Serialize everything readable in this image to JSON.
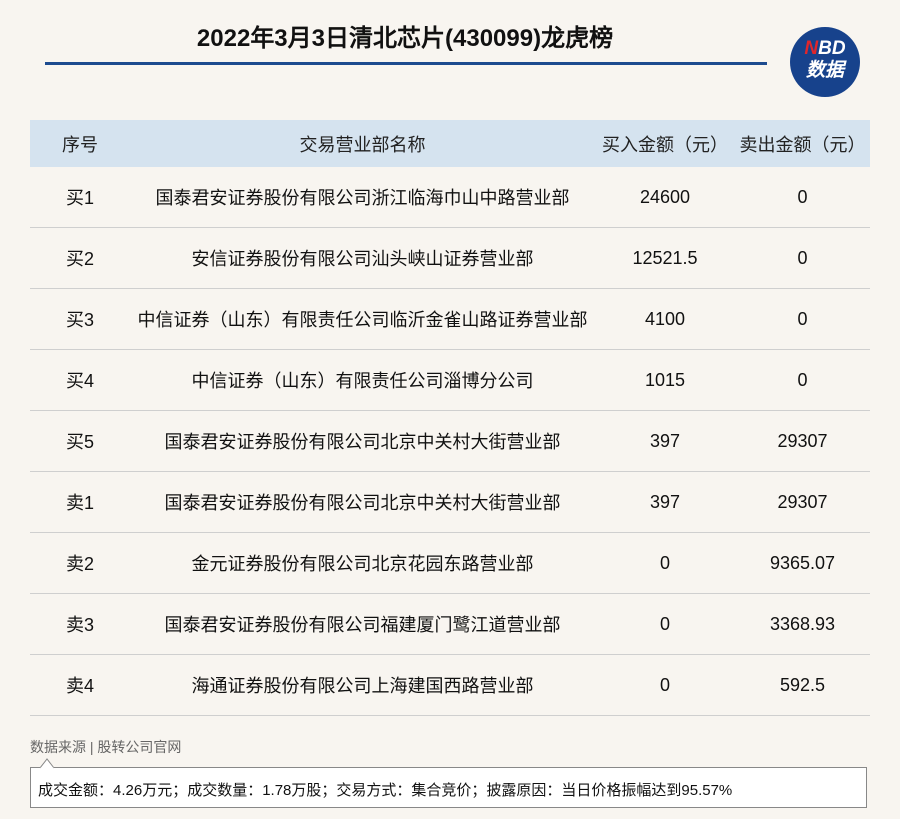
{
  "header": {
    "title": "2022年3月3日清北芯片(430099)龙虎榜",
    "logo": {
      "accent": "N",
      "rest": "BD",
      "sub": "数据"
    }
  },
  "table": {
    "columns": [
      "序号",
      "交易营业部名称",
      "买入金额（元）",
      "卖出金额（元）"
    ],
    "rows": [
      [
        "买1",
        "国泰君安证券股份有限公司浙江临海巾山中路营业部",
        "24600",
        "0"
      ],
      [
        "买2",
        "安信证券股份有限公司汕头峡山证券营业部",
        "12521.5",
        "0"
      ],
      [
        "买3",
        "中信证券（山东）有限责任公司临沂金雀山路证券营业部",
        "4100",
        "0"
      ],
      [
        "买4",
        "中信证券（山东）有限责任公司淄博分公司",
        "1015",
        "0"
      ],
      [
        "买5",
        "国泰君安证券股份有限公司北京中关村大街营业部",
        "397",
        "29307"
      ],
      [
        "卖1",
        "国泰君安证券股份有限公司北京中关村大街营业部",
        "397",
        "29307"
      ],
      [
        "卖2",
        "金元证券股份有限公司北京花园东路营业部",
        "0",
        "9365.07"
      ],
      [
        "卖3",
        "国泰君安证券股份有限公司福建厦门鹭江道营业部",
        "0",
        "3368.93"
      ],
      [
        "卖4",
        "海通证券股份有限公司上海建国西路营业部",
        "0",
        "592.5"
      ]
    ]
  },
  "footer": {
    "source": "数据来源 | 股转公司官网",
    "note": "成交金额：4.26万元；成交数量：1.78万股；交易方式：集合竞价；披露原因：当日价格振幅达到95.57%"
  }
}
